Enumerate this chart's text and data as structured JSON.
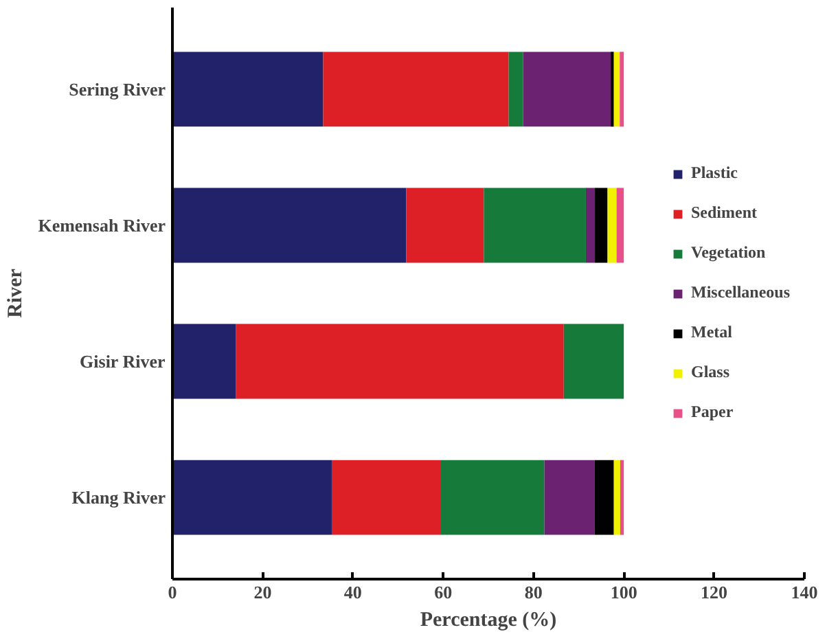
{
  "chart_data": {
    "type": "bar",
    "orientation": "horizontal",
    "stacked": true,
    "xlabel": "Percentage (%)",
    "ylabel": "River",
    "categories": [
      "Sering River",
      "Kemensah River",
      "Gisir River",
      "Klang River"
    ],
    "series": [
      {
        "name": "Plastic",
        "color": "#22226b",
        "values": [
          33.4,
          51.8,
          14.1,
          35.3
        ]
      },
      {
        "name": "Sediment",
        "color": "#dc2026",
        "values": [
          41.1,
          17.2,
          72.6,
          24.2
        ]
      },
      {
        "name": "Vegetation",
        "color": "#157a3a",
        "values": [
          3.2,
          22.6,
          13.3,
          22.9
        ]
      },
      {
        "name": "Miscellaneous",
        "color": "#6b2270",
        "values": [
          19.4,
          2.0,
          0,
          11.1
        ]
      },
      {
        "name": "Metal",
        "color": "#000000",
        "values": [
          0.7,
          2.8,
          0,
          4.3
        ]
      },
      {
        "name": "Glass",
        "color": "#f0f000",
        "values": [
          1.3,
          2.0,
          0,
          1.4
        ]
      },
      {
        "name": "Paper",
        "color": "#e8508a",
        "values": [
          0.9,
          1.6,
          0,
          0.8
        ]
      }
    ],
    "xlim": [
      0,
      140
    ],
    "xticks": [
      0,
      20,
      40,
      60,
      80,
      100,
      120,
      140
    ],
    "grid": false,
    "legend": "right"
  }
}
